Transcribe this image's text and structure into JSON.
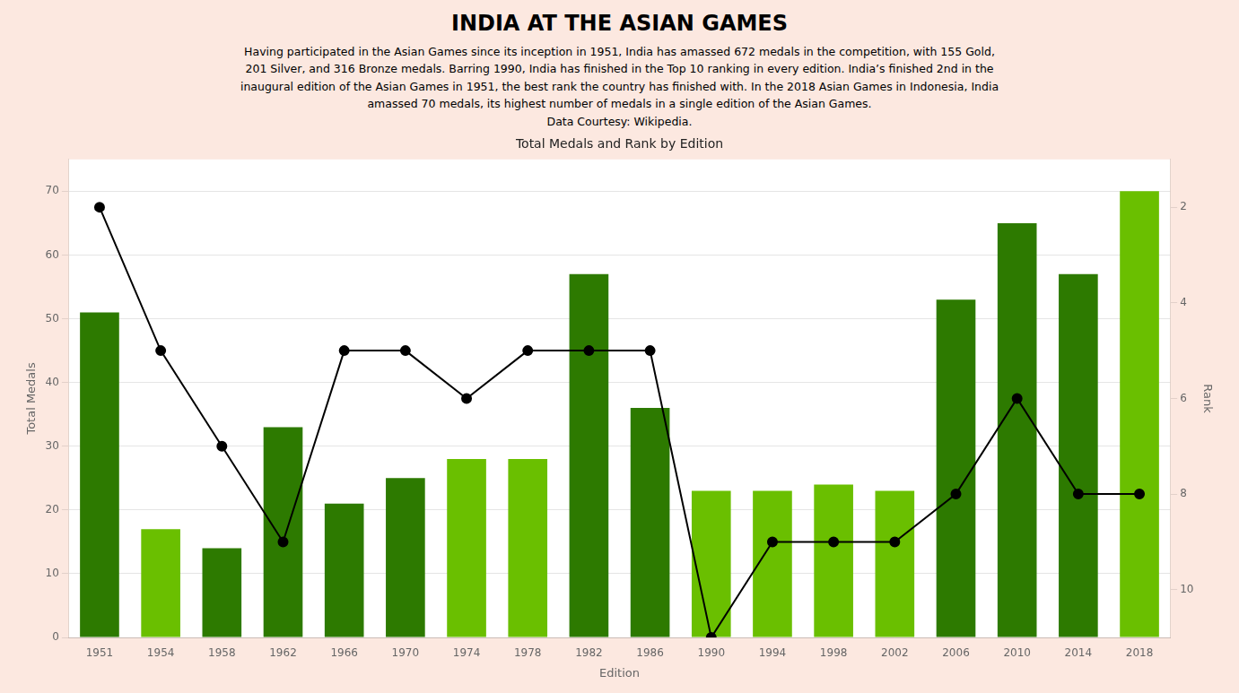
{
  "title": "INDIA AT THE ASIAN GAMES",
  "subtitle": [
    "Having participated in the Asian Games since its inception in 1951, India has amassed 672 medals in the competition, with 155 Gold,",
    "201 Silver, and 316 Bronze medals. Barring 1990, India has finished in the Top 10 ranking in every edition. India’s finished 2nd in the",
    "inaugural edition of the Asian Games in 1951, the best rank the country has finished with. In the 2018 Asian Games in Indonesia, India",
    "amassed 70 medals, its highest number of medals in a single edition of the Asian Games.",
    "Data Courtesy: Wikipedia."
  ],
  "chart_data": {
    "type": "bar",
    "title": "Total Medals and Rank by Edition",
    "x_label": "Edition",
    "y_label": "Total Medals",
    "y2_label": "Rank",
    "categories": [
      "1951",
      "1954",
      "1958",
      "1962",
      "1966",
      "1970",
      "1974",
      "1978",
      "1982",
      "1986",
      "1990",
      "1994",
      "1998",
      "2002",
      "2006",
      "2010",
      "2014",
      "2018"
    ],
    "series": [
      {
        "type": "bar",
        "axis": "y",
        "values": [
          51,
          17,
          14,
          33,
          21,
          25,
          28,
          28,
          57,
          36,
          23,
          23,
          24,
          23,
          53,
          65,
          57,
          70
        ],
        "colors": [
          "#2d7a00",
          "#6abf00",
          "#2d7a00",
          "#2d7a00",
          "#2d7a00",
          "#2d7a00",
          "#6abf00",
          "#6abf00",
          "#2d7a00",
          "#2d7a00",
          "#6abf00",
          "#6abf00",
          "#6abf00",
          "#6abf00",
          "#2d7a00",
          "#2d7a00",
          "#2d7a00",
          "#6abf00"
        ]
      },
      {
        "type": "line",
        "axis": "y2",
        "values": [
          2,
          5,
          7,
          9,
          5,
          5,
          6,
          5,
          5,
          5,
          11,
          9,
          9,
          9,
          8,
          6,
          8,
          8
        ],
        "color": "#000000",
        "marker": "o",
        "line_style": "solid"
      }
    ],
    "ylim": [
      0,
      75
    ],
    "yticks": [
      0,
      10,
      20,
      30,
      40,
      50,
      60,
      70
    ],
    "y2lim": [
      11,
      1
    ],
    "y2ticks": [
      2,
      4,
      6,
      8,
      10
    ],
    "grid": true
  }
}
